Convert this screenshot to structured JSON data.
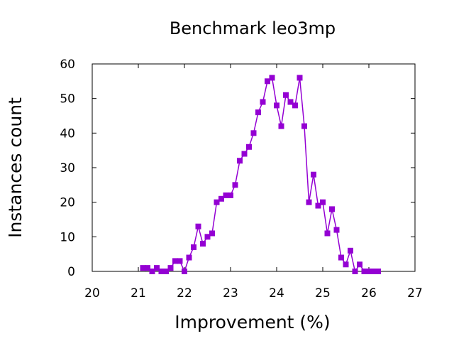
{
  "chart_data": {
    "type": "line",
    "title": "Benchmark leo3mp",
    "xlabel": "Improvement (%)",
    "ylabel": "Instances count",
    "xlim": [
      20,
      27
    ],
    "ylim": [
      0,
      60
    ],
    "xticks": [
      20,
      21,
      22,
      23,
      24,
      25,
      26,
      27
    ],
    "yticks": [
      0,
      10,
      20,
      30,
      40,
      50,
      60
    ],
    "grid": false,
    "legend": "none",
    "series_color": "#9400d3",
    "marker": "square",
    "series": [
      {
        "x": [
          21.1,
          21.2,
          21.3,
          21.4,
          21.5,
          21.6,
          21.7,
          21.8,
          21.9,
          22.0,
          22.1,
          22.2,
          22.3,
          22.4,
          22.5,
          22.6,
          22.7,
          22.8,
          22.9,
          23.0,
          23.1,
          23.2,
          23.3,
          23.4,
          23.5,
          23.6,
          23.7,
          23.8,
          23.9,
          24.0,
          24.1,
          24.2,
          24.3,
          24.4,
          24.5,
          24.6,
          24.7,
          24.8,
          24.9,
          25.0,
          25.1,
          25.2,
          25.3,
          25.4,
          25.5,
          25.6,
          25.7,
          25.8,
          25.9,
          26.0,
          26.1,
          26.2
        ],
        "y": [
          1,
          1,
          0,
          1,
          0,
          0,
          1,
          3,
          3,
          0,
          4,
          7,
          13,
          8,
          10,
          11,
          20,
          21,
          22,
          22,
          25,
          32,
          34,
          36,
          40,
          46,
          49,
          55,
          56,
          48,
          42,
          51,
          49,
          48,
          56,
          42,
          20,
          28,
          19,
          20,
          11,
          18,
          12,
          4,
          2,
          6,
          0,
          2,
          0,
          0,
          0,
          0
        ]
      }
    ]
  }
}
